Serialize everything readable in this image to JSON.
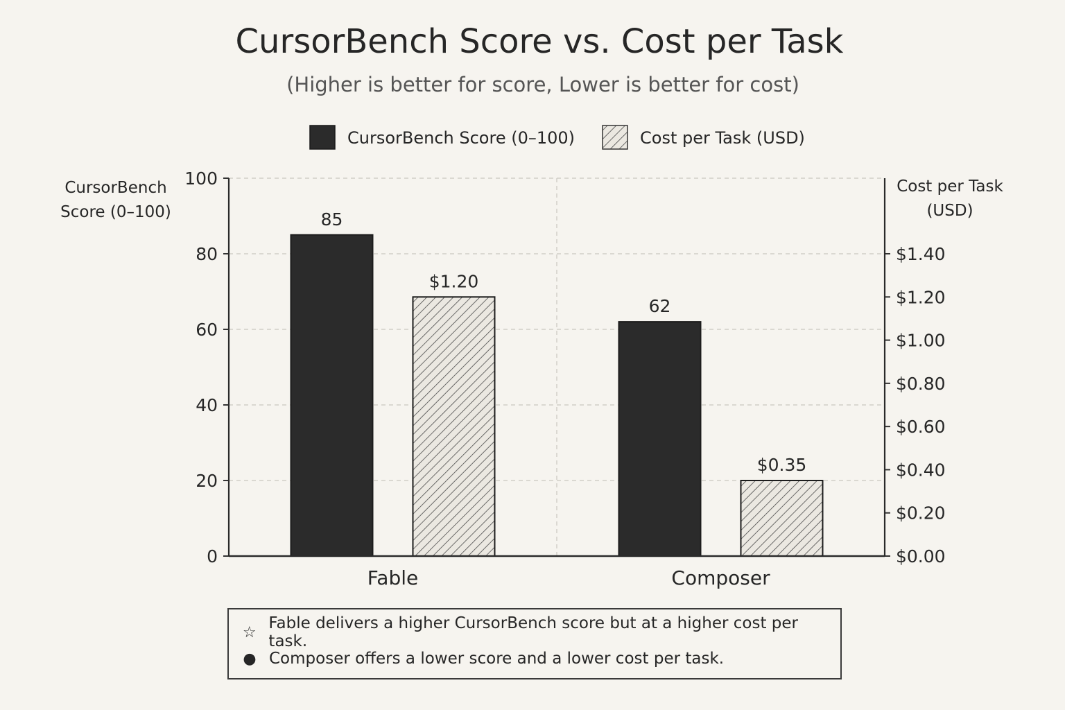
{
  "chart_data": {
    "type": "bar",
    "title": "CursorBench Score vs. Cost per Task",
    "subtitle": "(Higher is better for score, Lower is better for cost)",
    "categories": [
      "Fable",
      "Composer"
    ],
    "series": [
      {
        "name": "CursorBench Score (0–100)",
        "values": [
          85,
          62
        ],
        "labels": [
          "85",
          "62"
        ],
        "axis": "left",
        "fill": "solid",
        "color": "#2b2b2b"
      },
      {
        "name": "Cost per Task (USD)",
        "values": [
          1.2,
          0.35
        ],
        "labels": [
          "$1.20",
          "$0.35"
        ],
        "axis": "right",
        "fill": "hatched",
        "color": "#e6e3dc"
      }
    ],
    "left_axis": {
      "label_line1": "CursorBench",
      "label_line2": "Score (0–100)",
      "ylim": [
        0,
        100
      ],
      "ticks": [
        "0",
        "20",
        "40",
        "60",
        "80",
        "100"
      ]
    },
    "right_axis": {
      "label_line1": "Cost per Task",
      "label_line2": "(USD)",
      "ylim": [
        0,
        1.75
      ],
      "ticks": [
        "$0.00",
        "$0.20",
        "$0.40",
        "$0.60",
        "$0.80",
        "$1.00",
        "$1.20",
        "$1.40"
      ]
    },
    "grid": true,
    "legend_position": "top"
  },
  "notes": [
    {
      "symbol": "☆",
      "text": "Fable delivers a higher CursorBench score but at a higher cost per task."
    },
    {
      "symbol": "●",
      "text": "Composer offers a lower score and a lower cost per task."
    }
  ]
}
